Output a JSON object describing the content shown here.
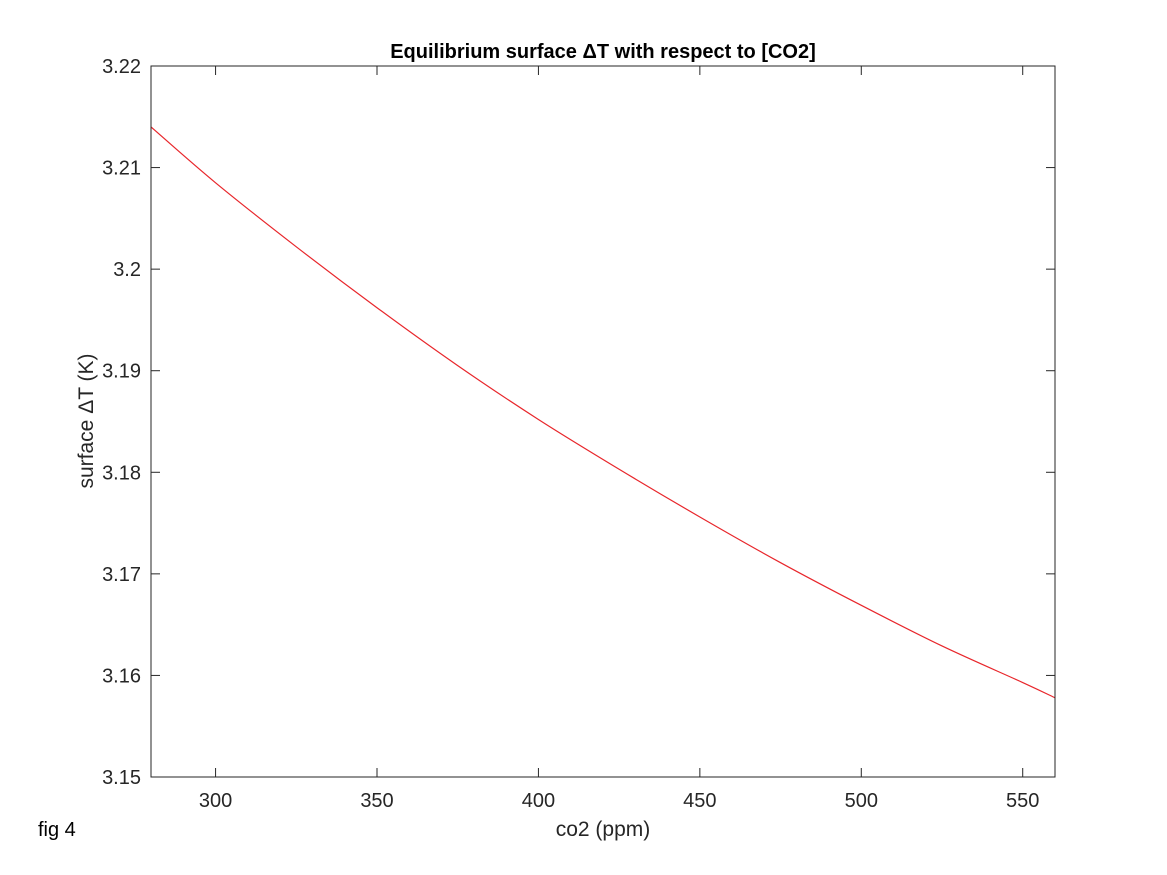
{
  "figure_note": "fig 4",
  "colors": {
    "line": "#e8262b",
    "axis": "#262626",
    "background": "#ffffff"
  },
  "chart_data": {
    "type": "line",
    "title": "Equilibrium surface ΔT with respect to [CO2]",
    "xlabel": "co2 (ppm)",
    "ylabel": "surface ΔT (K)",
    "xlim": [
      280,
      560
    ],
    "ylim": [
      3.15,
      3.22
    ],
    "xticks": [
      300,
      350,
      400,
      450,
      500,
      550
    ],
    "yticks": [
      3.15,
      3.16,
      3.17,
      3.18,
      3.19,
      3.2,
      3.21,
      3.22
    ],
    "ytick_labels": [
      "3.15",
      "3.16",
      "3.17",
      "3.18",
      "3.19",
      "3.2",
      "3.21",
      "3.22"
    ],
    "grid": false,
    "box": true,
    "series": [
      {
        "color": "#e8262b",
        "x": [
          280,
          300,
          325,
          350,
          375,
          400,
          425,
          450,
          475,
          500,
          525,
          550,
          560
        ],
        "y": [
          3.214,
          3.2085,
          3.2022,
          3.1962,
          3.1905,
          3.1852,
          3.1803,
          3.1756,
          3.1711,
          3.1669,
          3.1629,
          3.1593,
          3.1578
        ]
      }
    ]
  }
}
